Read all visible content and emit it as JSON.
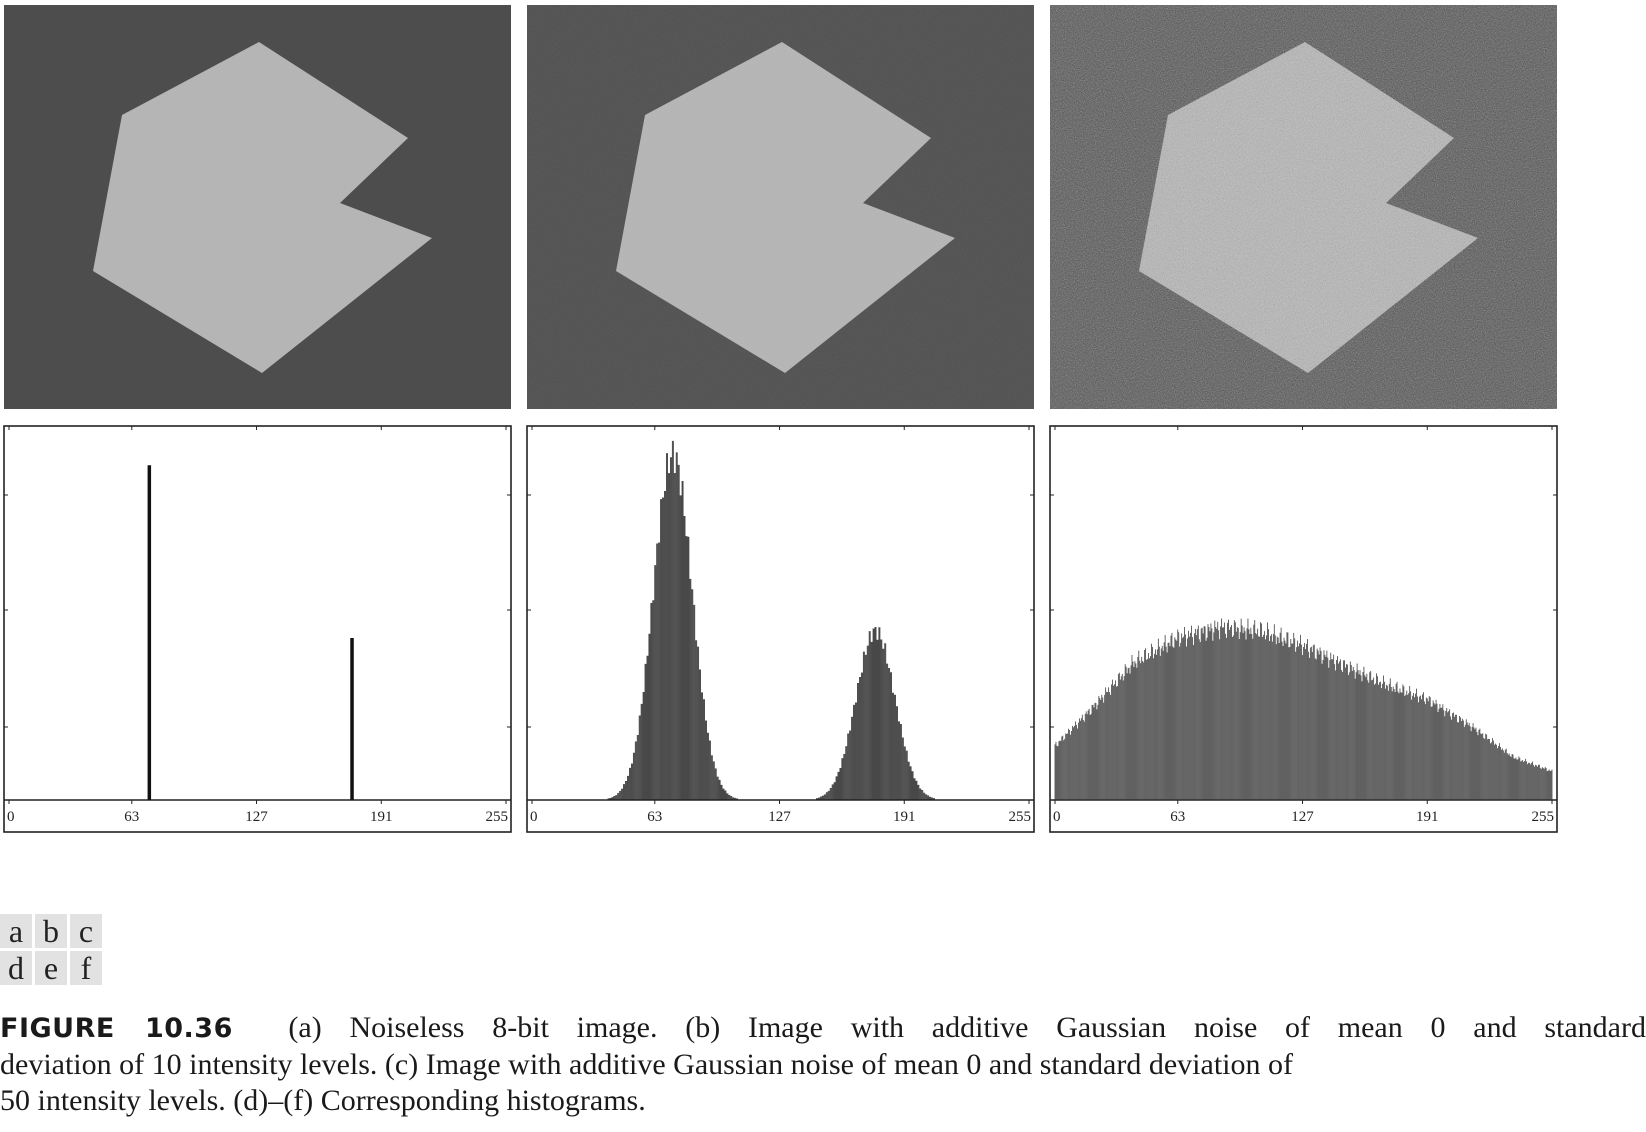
{
  "images": [
    {
      "label": "a",
      "background": "#4d4d4d",
      "shape": "#b5b5b5",
      "noise_sd": 0
    },
    {
      "label": "b",
      "background": "#4d4d4d",
      "shape": "#b5b5b5",
      "noise_sd": 10
    },
    {
      "label": "c",
      "background": "#4d4d4d",
      "shape": "#b5b5b5",
      "noise_sd": 50
    }
  ],
  "panel_labels": [
    [
      "a",
      "b",
      "c"
    ],
    [
      "d",
      "e",
      "f"
    ]
  ],
  "chart_data": [
    {
      "type": "bar",
      "title": "",
      "xlabel": "",
      "ylabel": "",
      "x_ticks": [
        "0",
        "63",
        "127",
        "191",
        "255"
      ],
      "xlim": [
        0,
        255
      ],
      "ylim": [
        0,
        1
      ],
      "grid": false,
      "bars": [
        {
          "x": 72,
          "height": 0.93
        },
        {
          "x": 176,
          "height": 0.45
        }
      ]
    },
    {
      "type": "bar",
      "title": "",
      "xlabel": "",
      "ylabel": "",
      "x_ticks": [
        "0",
        "63",
        "127",
        "191",
        "255"
      ],
      "xlim": [
        0,
        255
      ],
      "ylim": [
        0,
        1
      ],
      "grid": false,
      "peaks": [
        {
          "mean": 72,
          "sd": 10,
          "height": 0.96
        },
        {
          "mean": 176,
          "sd": 10,
          "height": 0.47
        }
      ]
    },
    {
      "type": "bar",
      "title": "",
      "xlabel": "",
      "ylabel": "",
      "x_ticks": [
        "0",
        "63",
        "127",
        "191",
        "255"
      ],
      "xlim": [
        0,
        255
      ],
      "ylim": [
        0,
        1
      ],
      "grid": false,
      "envelope": [
        {
          "x": 0,
          "y": 0.15
        },
        {
          "x": 20,
          "y": 0.26
        },
        {
          "x": 40,
          "y": 0.38
        },
        {
          "x": 63,
          "y": 0.45
        },
        {
          "x": 85,
          "y": 0.48
        },
        {
          "x": 105,
          "y": 0.47
        },
        {
          "x": 127,
          "y": 0.43
        },
        {
          "x": 150,
          "y": 0.37
        },
        {
          "x": 170,
          "y": 0.32
        },
        {
          "x": 191,
          "y": 0.28
        },
        {
          "x": 215,
          "y": 0.2
        },
        {
          "x": 235,
          "y": 0.12
        },
        {
          "x": 255,
          "y": 0.08
        }
      ]
    }
  ],
  "caption": {
    "figure_label": "FIGURE 10.36",
    "line1": "(a) Noiseless 8-bit image. (b) Image with additive Gaussian noise of mean 0 and standard",
    "line2": "deviation of 10 intensity levels. (c) Image with additive Gaussian noise of mean 0 and standard deviation of",
    "line3": "50 intensity levels. (d)–(f) Corresponding histograms."
  }
}
